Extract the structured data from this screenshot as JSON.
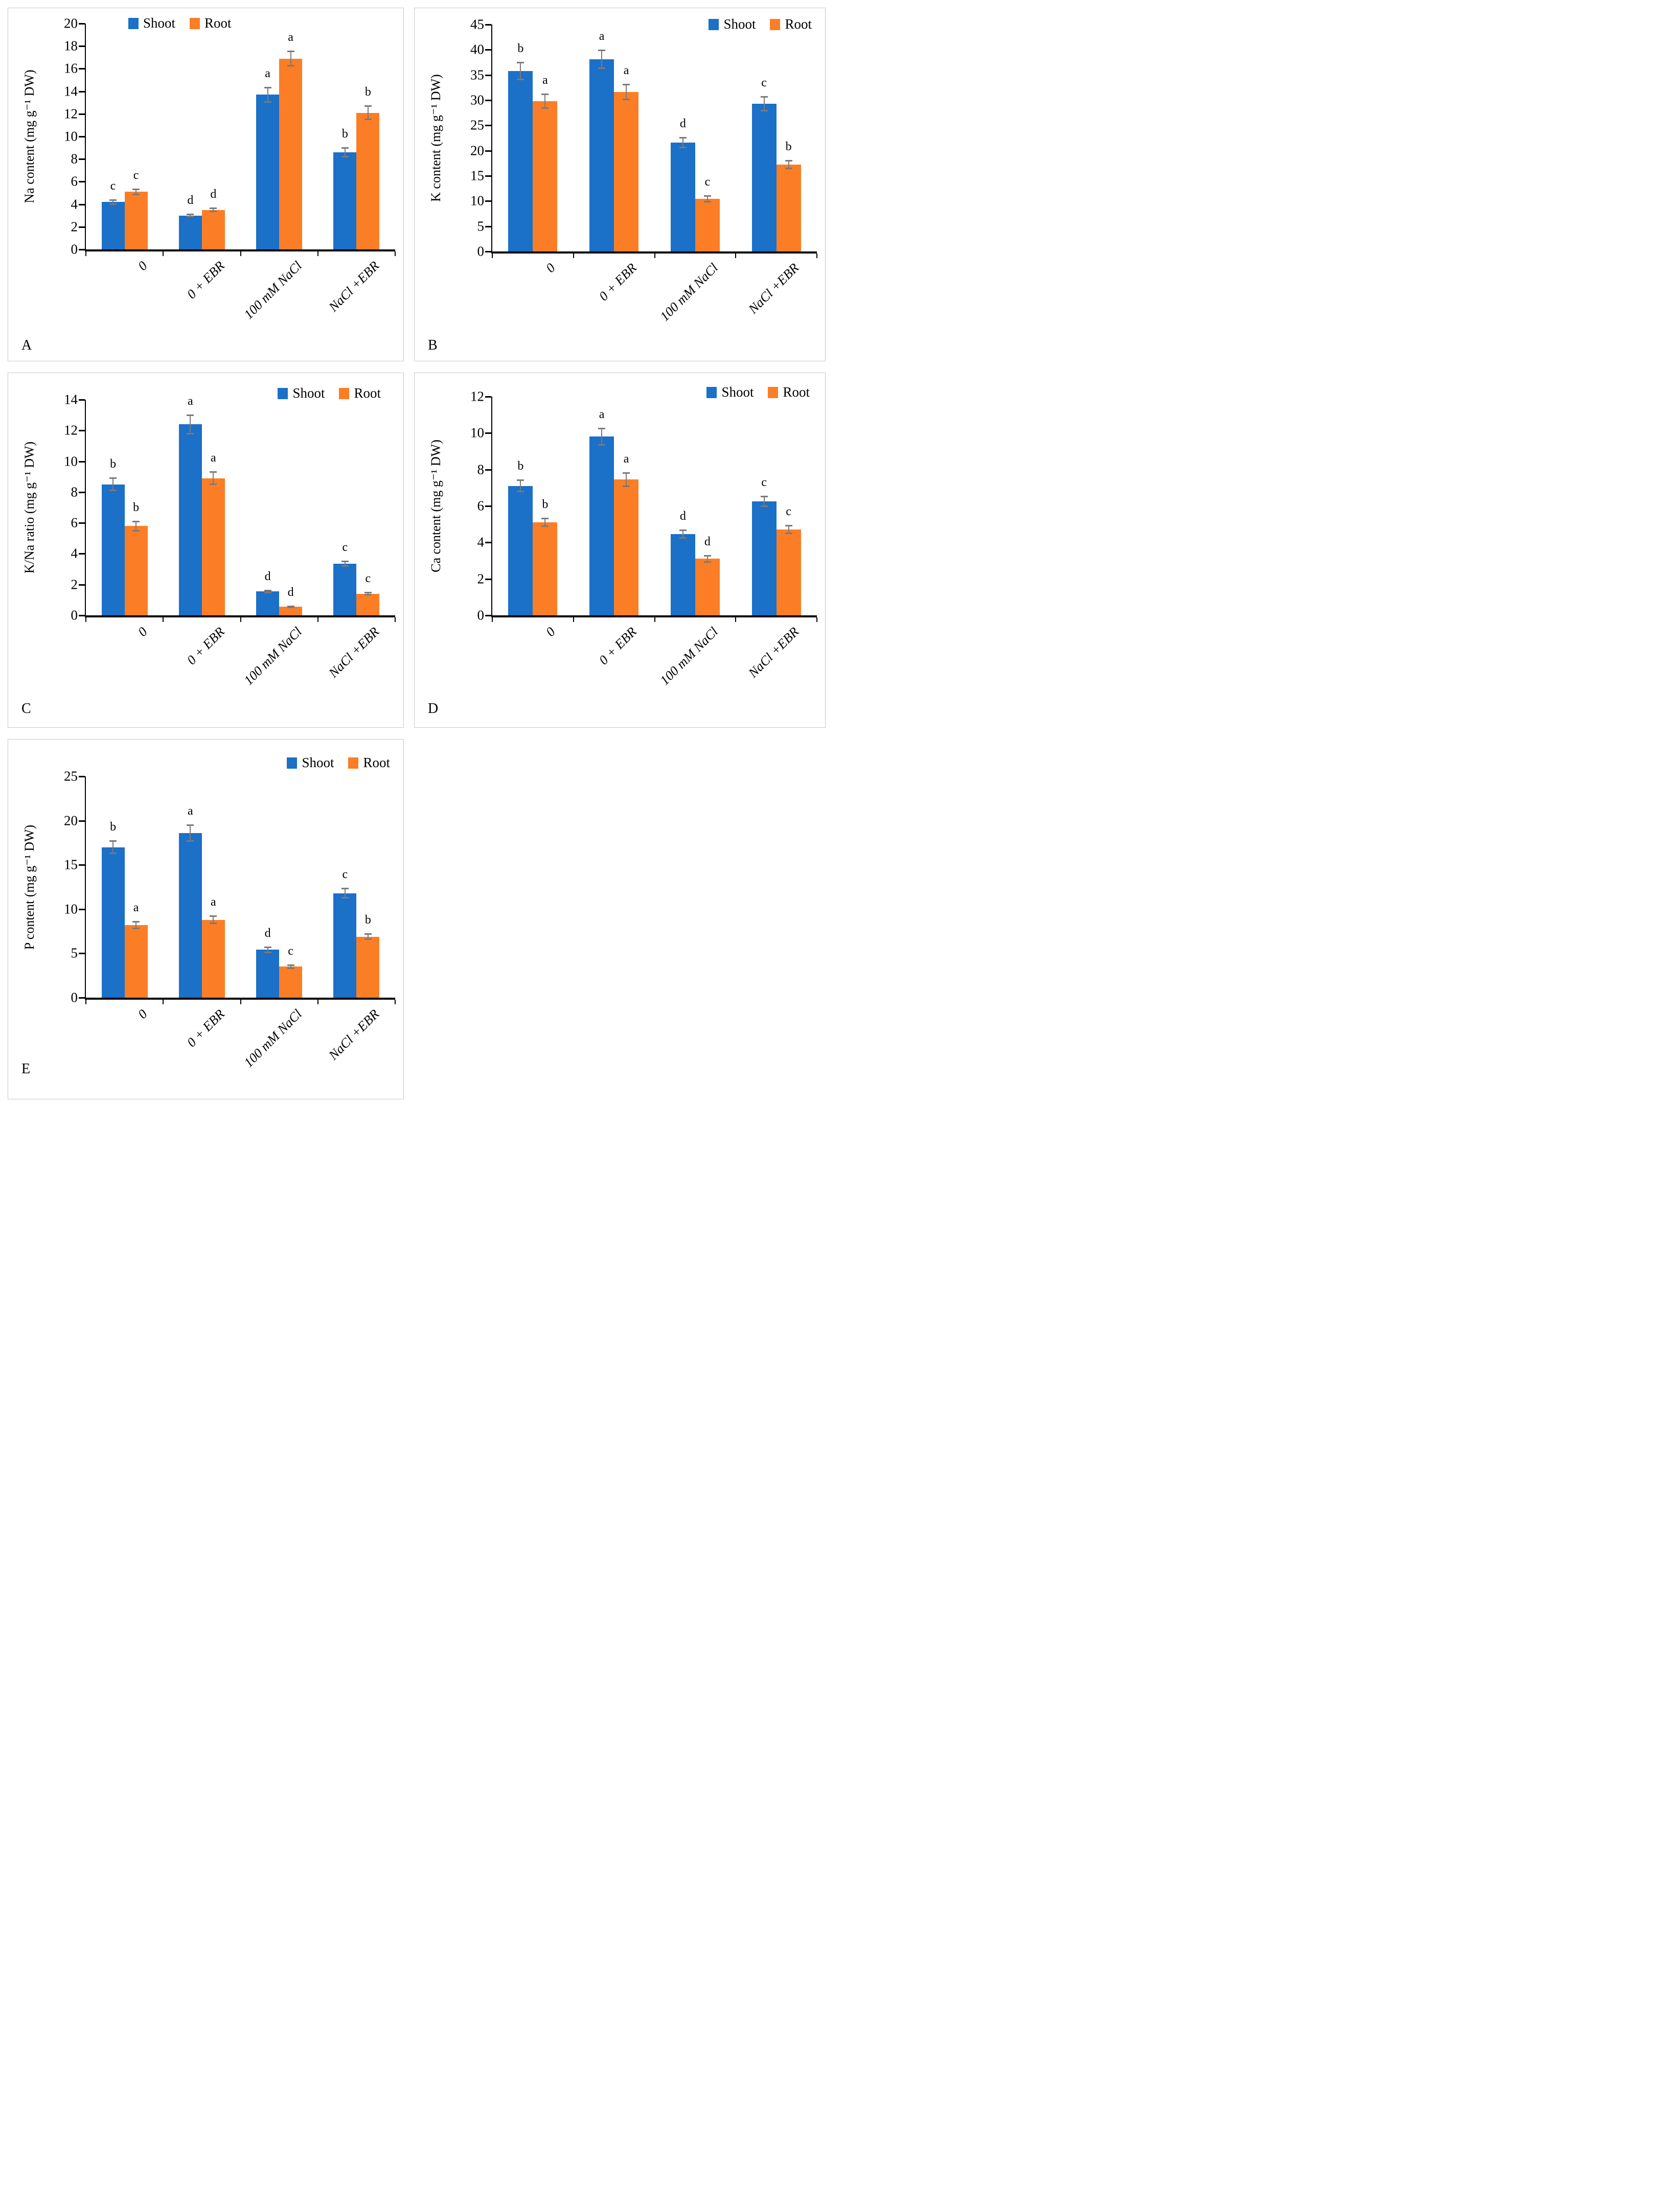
{
  "figure": {
    "background": "#ffffff"
  },
  "colors": {
    "shoot": "#1b70c7",
    "root": "#fb7e26",
    "error_bar": "#7a7a7a",
    "axis": "#000000",
    "panel_border": "#c9c9c9",
    "text": "#000000"
  },
  "legend_labels": {
    "shoot": "Shoot",
    "root": "Root"
  },
  "chart_data": [
    {
      "panel_label": "A",
      "type": "bar",
      "ylabel": "Na content (mg g⁻¹ DW)",
      "categories": [
        "0",
        "0 + EBR",
        "100 mM NaCl",
        "NaCl +EBR"
      ],
      "ylim": [
        0,
        20
      ],
      "ytick_step": 2,
      "grid": false,
      "legend_position": "top-left",
      "series": [
        {
          "name": "Shoot",
          "values": [
            4.2,
            3.0,
            13.7,
            8.6
          ],
          "errors": [
            0.25,
            0.15,
            0.7,
            0.45
          ],
          "letters": [
            "c",
            "d",
            "a",
            "b"
          ]
        },
        {
          "name": "Root",
          "values": [
            5.1,
            3.5,
            16.9,
            12.1
          ],
          "errors": [
            0.3,
            0.2,
            0.7,
            0.65
          ],
          "letters": [
            "c",
            "d",
            "a",
            "b"
          ]
        }
      ]
    },
    {
      "panel_label": "B",
      "type": "bar",
      "ylabel": "K content (mg g⁻¹ DW)",
      "categories": [
        "0",
        "0 + EBR",
        "100 mM NaCl",
        "NaCl +EBR"
      ],
      "ylim": [
        0,
        45
      ],
      "ytick_step": 5,
      "grid": false,
      "legend_position": "top-right",
      "series": [
        {
          "name": "Shoot",
          "values": [
            35.8,
            38.1,
            21.6,
            29.3
          ],
          "errors": [
            1.8,
            1.9,
            1.1,
            1.5
          ],
          "letters": [
            "b",
            "a",
            "d",
            "c"
          ]
        },
        {
          "name": "Root",
          "values": [
            29.8,
            31.6,
            10.4,
            17.2
          ],
          "errors": [
            1.5,
            1.6,
            0.7,
            0.9
          ],
          "letters": [
            "a",
            "a",
            "c",
            "b"
          ]
        }
      ]
    },
    {
      "panel_label": "C",
      "type": "bar",
      "ylabel": "K/Na ratio (mg g⁻¹ DW)",
      "categories": [
        "0",
        "0 + EBR",
        "100 mM NaCl",
        "NaCl +EBR"
      ],
      "ylim": [
        0,
        14
      ],
      "ytick_step": 2,
      "grid": false,
      "legend_position": "top-right",
      "series": [
        {
          "name": "Shoot",
          "values": [
            8.5,
            12.4,
            1.55,
            3.35
          ],
          "errors": [
            0.45,
            0.65,
            0.12,
            0.2
          ],
          "letters": [
            "b",
            "a",
            "d",
            "c"
          ]
        },
        {
          "name": "Root",
          "values": [
            5.8,
            8.9,
            0.55,
            1.4
          ],
          "errors": [
            0.35,
            0.45,
            0.08,
            0.12
          ],
          "letters": [
            "b",
            "a",
            "d",
            "c"
          ]
        }
      ]
    },
    {
      "panel_label": "D",
      "type": "bar",
      "ylabel": "Ca content (mg g⁻¹ DW)",
      "categories": [
        "0",
        "0 + EBR",
        "100 mM NaCl",
        "NaCl +EBR"
      ],
      "ylim": [
        0,
        12
      ],
      "ytick_step": 2,
      "grid": false,
      "legend_position": "top-right",
      "series": [
        {
          "name": "Shoot",
          "values": [
            7.1,
            9.8,
            4.45,
            6.25
          ],
          "errors": [
            0.35,
            0.5,
            0.25,
            0.3
          ],
          "letters": [
            "b",
            "a",
            "d",
            "c"
          ]
        },
        {
          "name": "Root",
          "values": [
            5.1,
            7.45,
            3.1,
            4.7
          ],
          "errors": [
            0.25,
            0.4,
            0.2,
            0.25
          ],
          "letters": [
            "b",
            "a",
            "d",
            "c"
          ]
        }
      ]
    },
    {
      "panel_label": "E",
      "type": "bar",
      "ylabel": "P content (mg g⁻¹ DW)",
      "categories": [
        "0",
        "0 + EBR",
        "100 mM NaCl",
        "NaCl +EBR"
      ],
      "ylim": [
        0,
        25
      ],
      "ytick_step": 5,
      "grid": false,
      "legend_position": "top-right",
      "series": [
        {
          "name": "Shoot",
          "values": [
            17.0,
            18.6,
            5.4,
            11.8
          ],
          "errors": [
            0.8,
            1.0,
            0.35,
            0.6
          ],
          "letters": [
            "b",
            "a",
            "d",
            "c"
          ]
        },
        {
          "name": "Root",
          "values": [
            8.2,
            8.8,
            3.5,
            6.9
          ],
          "errors": [
            0.45,
            0.5,
            0.25,
            0.35
          ],
          "letters": [
            "a",
            "a",
            "c",
            "b"
          ]
        }
      ]
    }
  ]
}
